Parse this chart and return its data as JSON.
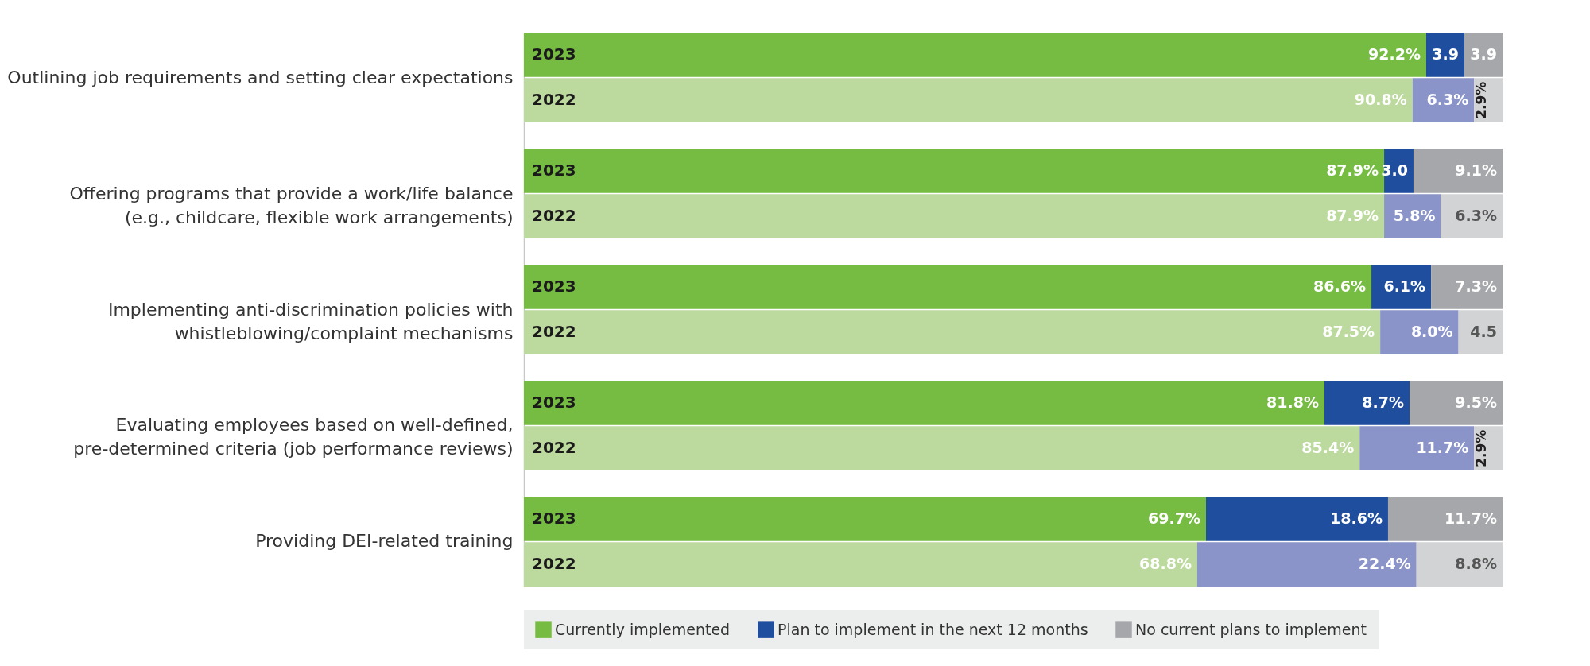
{
  "chart_data": {
    "type": "bar",
    "orientation": "horizontal",
    "stacked": true,
    "categories": [
      "2023",
      "2022",
      "2023",
      "2022",
      "2023",
      "2022",
      "2023",
      "2022",
      "2023",
      "2022"
    ],
    "annotations": [
      "Outlining job requirements and setting clear expectations",
      "Offering programs that provide a work/life balance\n(e.g., childcare, flexible work arrangements)",
      "Implementing anti-discrimination policies with\nwhistleblowing/complaint mechanisms",
      "Evaluating employees based on well-defined,\npre-determined criteria (job performance reviews)",
      "Providing DEI-related training"
    ],
    "xlim": [
      0,
      100
    ],
    "tick_labels": "y",
    "legend": "bottom",
    "series": [
      {
        "name": "Currently implemented",
        "color": "#76bc43",
        "colors": [
          "#76bc43",
          "#bcd99e",
          "#76bc43",
          "#bcd99e",
          "#76bc43",
          "#bcd99e",
          "#76bc43",
          "#bcd99e",
          "#76bc43",
          "#bcd99e"
        ],
        "values": [
          92.2,
          90.8,
          87.9,
          87.9,
          86.6,
          87.5,
          81.8,
          85.4,
          69.7,
          68.8
        ],
        "value_labels": [
          "92.2%",
          "90.8%",
          "87.9%",
          "87.9%",
          "86.6%",
          "87.5%",
          "81.8%",
          "85.4%",
          "69.7%",
          "68.8%"
        ]
      },
      {
        "name": "Plan to implement in the next 12 months",
        "color": "#1f4e9f",
        "colors": [
          "#1f4e9f",
          "#8a94c9",
          "#1f4e9f",
          "#8a94c9",
          "#1f4e9f",
          "#8a94c9",
          "#1f4e9f",
          "#8a94c9",
          "#1f4e9f",
          "#8a94c9"
        ],
        "values": [
          3.9,
          6.3,
          3.0,
          5.8,
          6.1,
          8.0,
          8.7,
          11.7,
          18.6,
          22.4
        ],
        "value_labels": [
          "3.9",
          "6.3%",
          "3.0",
          "5.8%",
          "6.1%",
          "8.0%",
          "8.7%",
          "11.7%",
          "18.6%",
          "22.4%"
        ]
      },
      {
        "name": "No current plans to implement",
        "color": "#a5a7aa",
        "colors": [
          "#a5a7aa",
          "#d1d3d4",
          "#a5a7aa",
          "#d1d3d4",
          "#a5a7aa",
          "#d1d3d4",
          "#a5a7aa",
          "#d1d3d4",
          "#a5a7aa",
          "#d1d3d4"
        ],
        "values": [
          3.9,
          2.9,
          9.1,
          6.3,
          7.3,
          4.5,
          9.5,
          2.9,
          11.7,
          8.8
        ],
        "value_labels": [
          "3.9",
          "2.9%",
          "9.1%",
          "6.3%",
          "7.3%",
          "4.5",
          "9.5%",
          "2.9%",
          "11.7%",
          "8.8%"
        ]
      }
    ]
  }
}
